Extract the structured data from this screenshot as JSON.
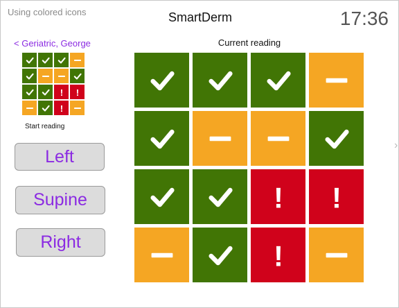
{
  "caption": "Using colored icons",
  "app_title": "SmartDerm",
  "clock": "17:36",
  "patient": {
    "back_label": "< Geriatric, George"
  },
  "start_reading": {
    "label": "Start reading",
    "grid": [
      [
        "good",
        "good",
        "good",
        "warn"
      ],
      [
        "good",
        "warn",
        "warn",
        "good"
      ],
      [
        "good",
        "good",
        "alert",
        "alert"
      ],
      [
        "warn",
        "good",
        "alert",
        "warn"
      ]
    ]
  },
  "positions": [
    {
      "label": "Left"
    },
    {
      "label": "Supine"
    },
    {
      "label": "Right"
    }
  ],
  "current_reading": {
    "label": "Current reading",
    "grid": [
      [
        "good",
        "good",
        "good",
        "warn"
      ],
      [
        "good",
        "warn",
        "warn",
        "good"
      ],
      [
        "good",
        "good",
        "alert",
        "alert"
      ],
      [
        "warn",
        "good",
        "alert",
        "warn"
      ]
    ]
  },
  "status_legend": {
    "good": {
      "icon": "check-icon",
      "color": "#417505"
    },
    "warn": {
      "icon": "dash-icon",
      "color": "#f5a623"
    },
    "alert": {
      "icon": "exclamation-icon",
      "symbol": "!",
      "color": "#d0021b"
    }
  },
  "edge_chevron": "›"
}
